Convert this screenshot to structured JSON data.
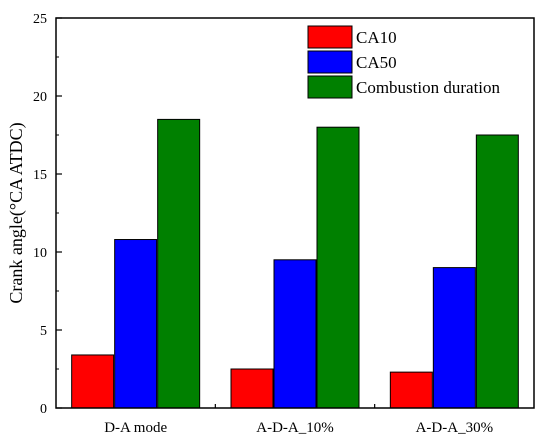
{
  "chart_data": {
    "type": "bar",
    "title": "",
    "xlabel": "",
    "ylabel": "Crank angle(°CA ATDC)",
    "ylim": [
      0,
      25
    ],
    "yticks": [
      0,
      5,
      10,
      15,
      20,
      25
    ],
    "categories": [
      "D-A mode",
      "A-D-A_10%",
      "A-D-A_30%"
    ],
    "series": [
      {
        "name": "CA10",
        "color": "#ff0000",
        "values": [
          3.4,
          2.5,
          2.3
        ]
      },
      {
        "name": "CA50",
        "color": "#0000ff",
        "values": [
          10.8,
          9.5,
          9.0
        ]
      },
      {
        "name": "Combustion duration",
        "color": "#008000",
        "values": [
          18.5,
          18.0,
          17.5
        ]
      }
    ],
    "legend_position": "top-right",
    "grid": false
  }
}
